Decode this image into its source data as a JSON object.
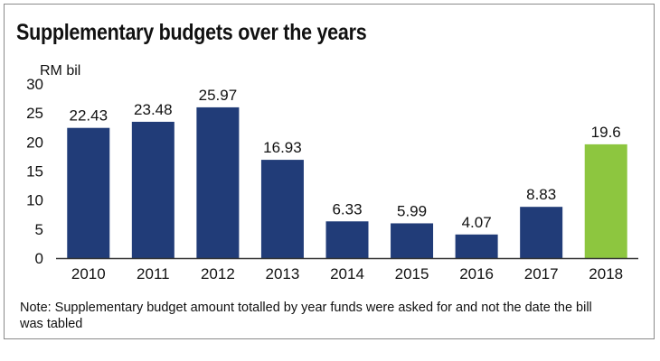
{
  "chart_data": {
    "type": "bar",
    "title": "Supplementary budgets over the years",
    "ylabel": "RM bil",
    "xlabel": "",
    "ylim": [
      0,
      30
    ],
    "yticks": [
      0,
      5,
      10,
      15,
      20,
      25,
      30
    ],
    "grid": false,
    "legend": "none",
    "categories": [
      "2010",
      "2011",
      "2012",
      "2013",
      "2014",
      "2015",
      "2016",
      "2017",
      "2018"
    ],
    "values": [
      22.43,
      23.48,
      25.97,
      16.93,
      6.33,
      5.99,
      4.07,
      8.83,
      19.6
    ],
    "data_labels": [
      "22.43",
      "23.48",
      "25.97",
      "16.93",
      "6.33",
      "5.99",
      "4.07",
      "8.83",
      "19.6"
    ],
    "colors": {
      "default": "#213c78",
      "highlight": "#8dc63f",
      "highlight_category": "2018"
    }
  },
  "note": "Note: Supplementary budget amount totalled by year funds were asked for and not the date the bill was tabled"
}
